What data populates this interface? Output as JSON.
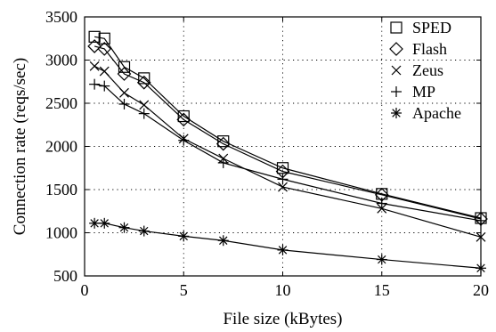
{
  "chart_data": {
    "type": "line",
    "title": "",
    "xlabel": "File size (kBytes)",
    "ylabel": "Connection rate (reqs/sec)",
    "xlim": [
      0,
      20
    ],
    "ylim": [
      500,
      3500
    ],
    "xticks": [
      0,
      5,
      10,
      15,
      20
    ],
    "yticks": [
      500,
      1000,
      1500,
      2000,
      2500,
      3000,
      3500
    ],
    "xtick_labels": [
      "0",
      "5",
      "10",
      "15",
      "20"
    ],
    "ytick_labels": [
      "500",
      "1000",
      "1500",
      "2000",
      "2500",
      "3000",
      "3500"
    ],
    "grid": true,
    "legend_position": "top-right",
    "x": [
      0.5,
      1,
      2,
      3,
      5,
      7,
      10,
      15,
      20
    ],
    "series": [
      {
        "name": "SPED",
        "marker": "square",
        "values": [
          3270,
          3250,
          2920,
          2790,
          2350,
          2060,
          1750,
          1450,
          1170
        ]
      },
      {
        "name": "Flash",
        "marker": "diamond",
        "values": [
          3160,
          3130,
          2840,
          2740,
          2310,
          2030,
          1710,
          1440,
          1160
        ]
      },
      {
        "name": "Zeus",
        "marker": "x",
        "values": [
          2930,
          2870,
          2620,
          2480,
          2090,
          1860,
          1530,
          1280,
          950
        ]
      },
      {
        "name": "MP",
        "marker": "plus",
        "values": [
          2720,
          2700,
          2490,
          2380,
          2070,
          1810,
          1620,
          1340,
          1140
        ]
      },
      {
        "name": "Apache",
        "marker": "star",
        "values": [
          1110,
          1110,
          1060,
          1020,
          960,
          910,
          800,
          690,
          590
        ]
      }
    ]
  }
}
